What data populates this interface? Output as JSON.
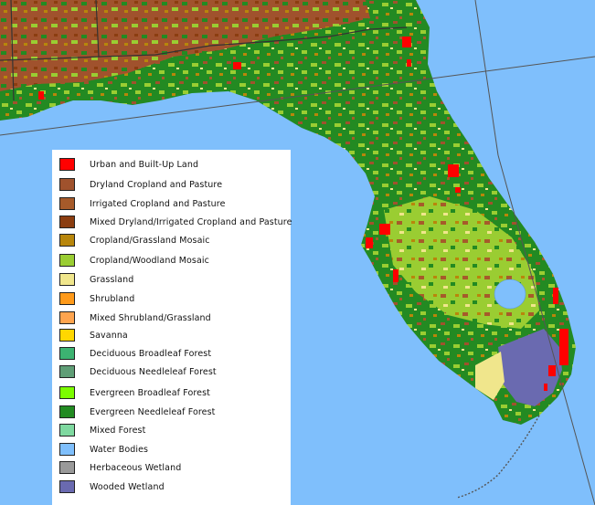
{
  "legend": {
    "items": [
      {
        "label": "Urban and Built-Up Land",
        "color": "#ff0000"
      },
      {
        "label": "Dryland Cropland and Pasture",
        "color": "#a0522d"
      },
      {
        "label": "Irrigated Cropland and Pasture",
        "color": "#a65a2a"
      },
      {
        "label": "Mixed Dryland/Irrigated Cropland and Pasture",
        "color": "#8b3d10"
      },
      {
        "label": "Cropland/Grassland Mosaic",
        "color": "#b8860b"
      },
      {
        "label": "Cropland/Woodland Mosaic",
        "color": "#9acd32"
      },
      {
        "label": "Grassland",
        "color": "#f0e68c"
      },
      {
        "label": "Shrubland",
        "color": "#ff9a1a"
      },
      {
        "label": "Mixed Shrubland/Grassland",
        "color": "#ffa54f"
      },
      {
        "label": "Savanna",
        "color": "#ffd700"
      },
      {
        "label": "Deciduous Broadleaf Forest",
        "color": "#3cb371"
      },
      {
        "label": "Deciduous Needleleaf Forest",
        "color": "#5f9e76"
      },
      {
        "label": "Evergreen Broadleaf Forest",
        "color": "#7cfc00"
      },
      {
        "label": "Evergreen Needleleaf Forest",
        "color": "#228b22"
      },
      {
        "label": "Mixed Forest",
        "color": "#7fd9a0"
      },
      {
        "label": "Water Bodies",
        "color": "#7fbffc"
      },
      {
        "label": "Herbaceous Wetland",
        "color": "#999999"
      },
      {
        "label": "Wooded Wetland",
        "color": "#6a6ab0"
      }
    ]
  }
}
